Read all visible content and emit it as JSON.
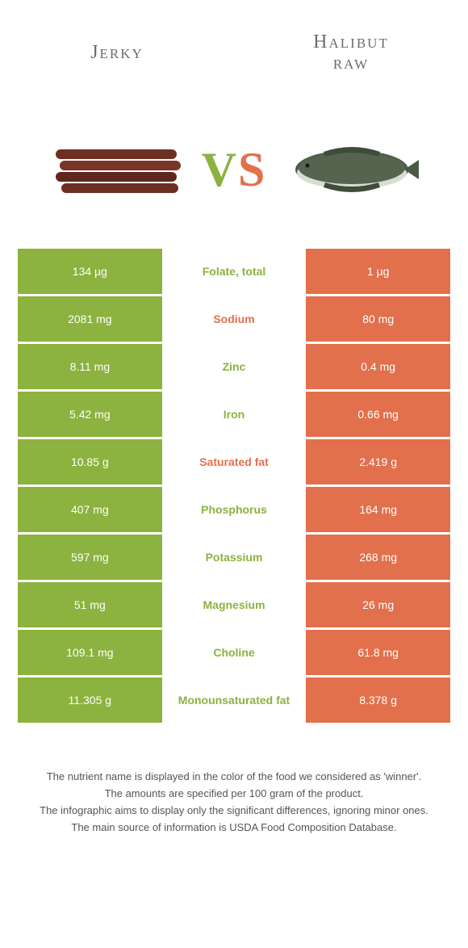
{
  "colors": {
    "left": "#8cb23f",
    "right": "#e2704c",
    "mid_left_text": "#8cb23f",
    "mid_right_text": "#e2704c"
  },
  "titles": {
    "left": "Jerky",
    "right_line1": "Halibut",
    "right_line2": "raw"
  },
  "vs": {
    "v": "V",
    "s": "S"
  },
  "rows": [
    {
      "left": "134 µg",
      "mid": "Folate, total",
      "right": "1 µg",
      "winner": "left"
    },
    {
      "left": "2081 mg",
      "mid": "Sodium",
      "right": "80 mg",
      "winner": "right"
    },
    {
      "left": "8.11 mg",
      "mid": "Zinc",
      "right": "0.4 mg",
      "winner": "left"
    },
    {
      "left": "5.42 mg",
      "mid": "Iron",
      "right": "0.66 mg",
      "winner": "left"
    },
    {
      "left": "10.85 g",
      "mid": "Saturated fat",
      "right": "2.419 g",
      "winner": "right"
    },
    {
      "left": "407 mg",
      "mid": "Phosphorus",
      "right": "164 mg",
      "winner": "left"
    },
    {
      "left": "597 mg",
      "mid": "Potassium",
      "right": "268 mg",
      "winner": "left"
    },
    {
      "left": "51 mg",
      "mid": "Magnesium",
      "right": "26 mg",
      "winner": "left"
    },
    {
      "left": "109.1 mg",
      "mid": "Choline",
      "right": "61.8 mg",
      "winner": "left"
    },
    {
      "left": "11.305 g",
      "mid": "Monounsaturated fat",
      "right": "8.378 g",
      "winner": "left"
    }
  ],
  "footer": {
    "l1": "The nutrient name is displayed in the color of the food we considered as 'winner'.",
    "l2": "The amounts are specified per 100 gram of the product.",
    "l3": "The infographic aims to display only the significant differences, ignoring minor ones.",
    "l4": "The main source of information is USDA Food Composition Database."
  }
}
